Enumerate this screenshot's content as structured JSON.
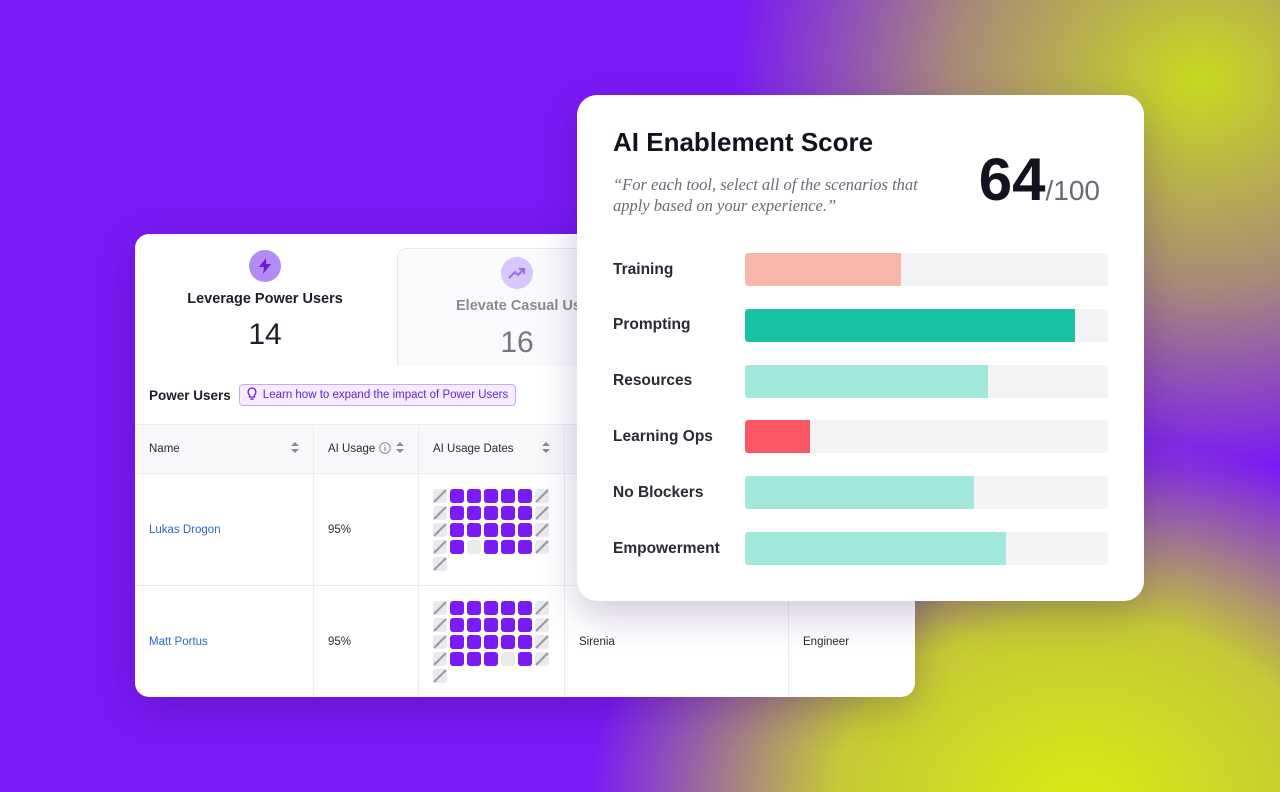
{
  "tiles": [
    {
      "label": "Leverage Power Users",
      "value": "14"
    },
    {
      "label": "Elevate Casual Users",
      "value": "16"
    }
  ],
  "section": {
    "title": "Power Users",
    "tip": "Learn how to expand the impact of Power Users"
  },
  "table": {
    "headers": [
      "Name",
      "AI Usage",
      "AI Usage Dates",
      "",
      ""
    ],
    "rows": [
      {
        "name": "Lukas Drogon",
        "usage": "95%",
        "team": "",
        "role": "",
        "dates": [
          "s",
          "f",
          "f",
          "f",
          "f",
          "f",
          "s",
          "s",
          "f",
          "f",
          "f",
          "f",
          "f",
          "s",
          "s",
          "f",
          "f",
          "f",
          "f",
          "f",
          "s",
          "s",
          "f",
          "e",
          "f",
          "f",
          "f",
          "s",
          "s"
        ]
      },
      {
        "name": "Matt Portus",
        "usage": "95%",
        "team": "Sirenia",
        "role": "Engineer",
        "dates": [
          "s",
          "f",
          "f",
          "f",
          "f",
          "f",
          "s",
          "s",
          "f",
          "f",
          "f",
          "f",
          "f",
          "s",
          "s",
          "f",
          "f",
          "f",
          "f",
          "f",
          "s",
          "s",
          "f",
          "f",
          "f",
          "e",
          "f",
          "s",
          "s"
        ]
      }
    ]
  },
  "score": {
    "title": "AI Enablement Score",
    "subtitle": "“For each tool, select all of the scenarios that apply based on your experience.”",
    "value": "64",
    "max": "/100",
    "categories": [
      {
        "label": "Training",
        "fraction": 0.43,
        "color": "#f7b8aa"
      },
      {
        "label": "Prompting",
        "fraction": 0.91,
        "color": "#17c3a2"
      },
      {
        "label": "Resources",
        "fraction": 0.67,
        "color": "#a3e8dc"
      },
      {
        "label": "Learning Ops",
        "fraction": 0.18,
        "color": "#fb5663"
      },
      {
        "label": "No Blockers",
        "fraction": 0.63,
        "color": "#a3e8dc"
      },
      {
        "label": "Empowerment",
        "fraction": 0.72,
        "color": "#a3e8dc"
      }
    ]
  }
}
